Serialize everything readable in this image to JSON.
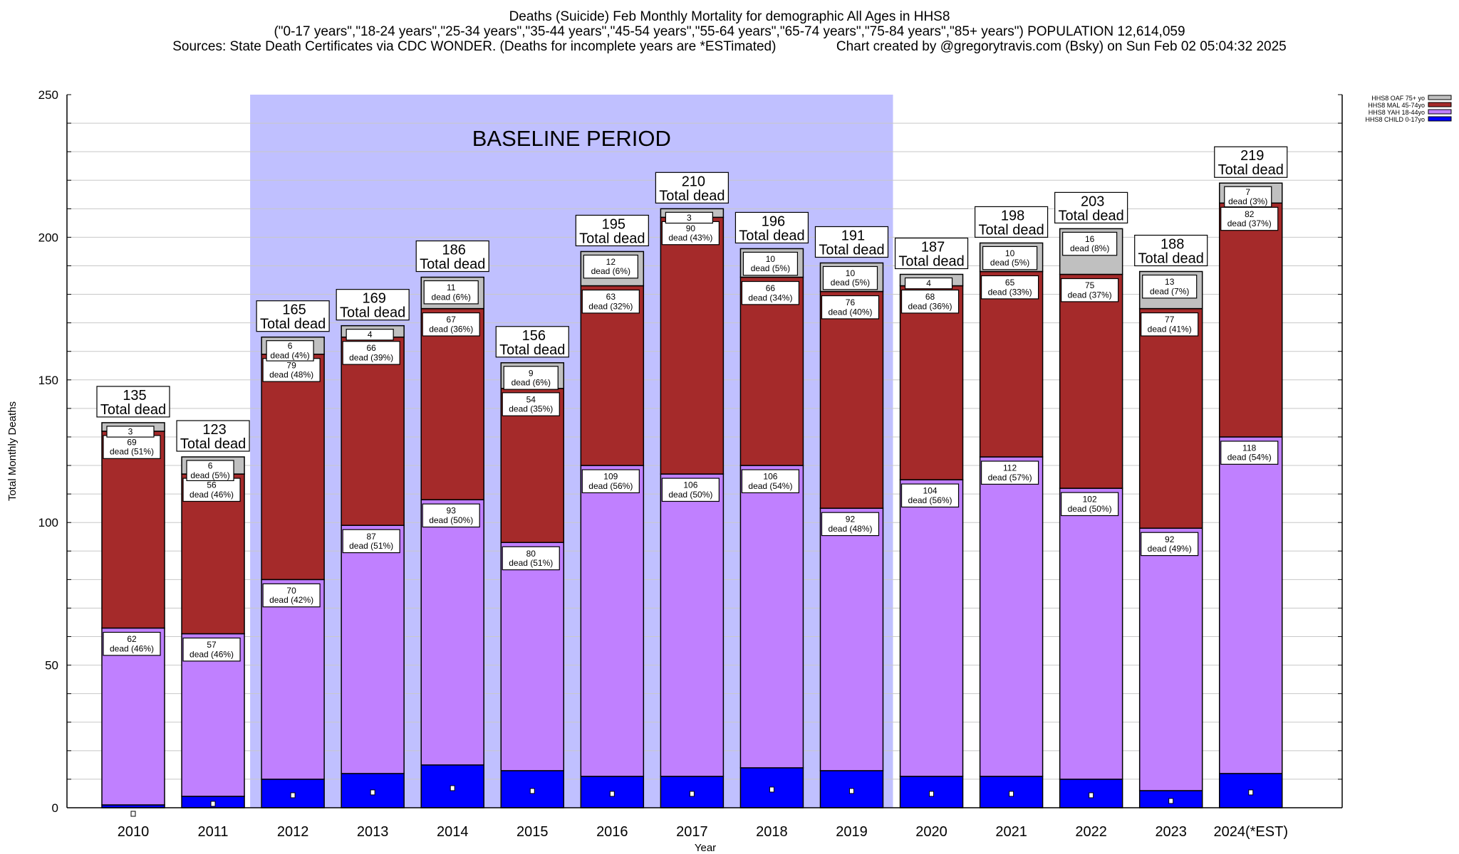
{
  "chart_data": {
    "type": "bar",
    "stacked": true,
    "title": "Deaths (Suicide) Feb Monthly Mortality for demographic All Ages in HHS8",
    "subtitle": "(\"0-17 years\",\"18-24 years\",\"25-34 years\",\"35-44 years\",\"45-54 years\",\"55-64 years\",\"65-74 years\",\"75-84 years\",\"85+ years\") POPULATION 12,614,059",
    "sources_line": "Sources: State Death Certificates via CDC WONDER. (Deaths for incomplete years are *ESTimated)                Chart created by @gregorytravis.com (Bsky) on Sun Feb 02 05:04:32 2025",
    "xlabel": "Year",
    "ylabel": "Total Monthly Deaths",
    "ylim": [
      0,
      250
    ],
    "yticks": [
      0,
      50,
      100,
      150,
      200,
      250
    ],
    "yminor_step": 10,
    "grid": true,
    "legend_position": "top-right",
    "annotation": "BASELINE PERIOD",
    "baseline_period": [
      "2012",
      "2019"
    ],
    "total_label_suffix": "Total dead",
    "segment_label_word": "dead",
    "categories": [
      "2010",
      "2011",
      "2012",
      "2013",
      "2014",
      "2015",
      "2016",
      "2017",
      "2018",
      "2019",
      "2020",
      "2021",
      "2022",
      "2023",
      "2024(*EST)"
    ],
    "totals": [
      135,
      123,
      165,
      169,
      186,
      156,
      195,
      210,
      196,
      191,
      187,
      198,
      203,
      188,
      219
    ],
    "series": [
      {
        "name": "HHS8 CHILD 0-17yo",
        "color": "#0000ff",
        "values": [
          1,
          4,
          10,
          12,
          15,
          13,
          11,
          11,
          14,
          13,
          11,
          11,
          10,
          6,
          12
        ],
        "pct": [
          null,
          null,
          null,
          null,
          null,
          null,
          null,
          null,
          null,
          null,
          null,
          null,
          null,
          null,
          null
        ]
      },
      {
        "name": "HHS8 YAH 18-44yo",
        "color": "#c080ff",
        "values": [
          62,
          57,
          70,
          87,
          93,
          80,
          109,
          106,
          106,
          92,
          104,
          112,
          102,
          92,
          118
        ],
        "pct": [
          46,
          46,
          42,
          51,
          50,
          51,
          56,
          50,
          54,
          48,
          56,
          57,
          50,
          49,
          54
        ]
      },
      {
        "name": "HHS8 MAL 45-74yo",
        "color": "#a52a2a",
        "values": [
          69,
          56,
          79,
          66,
          67,
          54,
          63,
          90,
          66,
          76,
          68,
          65,
          75,
          77,
          82
        ],
        "pct": [
          51,
          46,
          48,
          39,
          36,
          35,
          32,
          43,
          34,
          40,
          36,
          33,
          37,
          41,
          37
        ]
      },
      {
        "name": "HHS8 OAF 75+ yo",
        "color": "#c0c0c0",
        "values": [
          3,
          6,
          6,
          4,
          11,
          9,
          12,
          3,
          10,
          10,
          4,
          10,
          16,
          13,
          7
        ],
        "pct": [
          null,
          5,
          4,
          null,
          6,
          6,
          6,
          null,
          5,
          5,
          null,
          5,
          8,
          7,
          3
        ]
      }
    ],
    "legend_order": [
      "HHS8 OAF 75+ yo",
      "HHS8 MAL 45-74yo",
      "HHS8 YAH 18-44yo",
      "HHS8 CHILD 0-17yo"
    ],
    "colors": {
      "baseline_shade": "#c0c0ff",
      "grid": "#c8c8c8"
    }
  }
}
